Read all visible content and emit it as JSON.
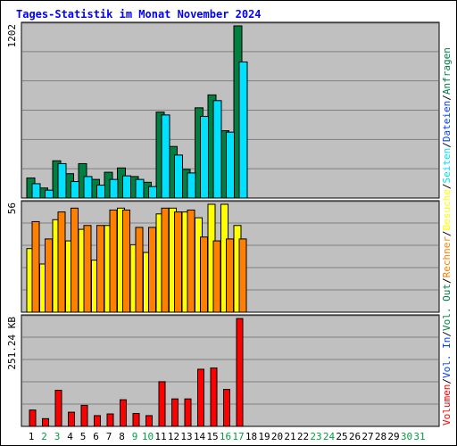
{
  "chart_data": [
    {
      "type": "bar",
      "title": "Tages-Statistik im Monat November 2024",
      "panel": "Anfragen/Dateien/Seiten",
      "categories": [
        "1",
        "2",
        "3",
        "4",
        "5",
        "6",
        "7",
        "8",
        "9",
        "10",
        "11",
        "12",
        "13",
        "14",
        "15",
        "16",
        "17",
        "18",
        "19",
        "20",
        "21",
        "22",
        "23",
        "24",
        "25",
        "26",
        "27",
        "28",
        "29",
        "30",
        "31"
      ],
      "ymax_label": "1202",
      "ylim": [
        0,
        1202
      ],
      "grid": true,
      "series": [
        {
          "name": "Anfragen",
          "color": "#008040",
          "values": [
            140,
            70,
            260,
            170,
            240,
            130,
            180,
            210,
            150,
            110,
            600,
            360,
            200,
            630,
            720,
            470,
            1202,
            null,
            null,
            null,
            null,
            null,
            null,
            null,
            null,
            null,
            null,
            null,
            null,
            null,
            null
          ]
        },
        {
          "name": "Dateien",
          "color": "#00e0ff",
          "values": [
            100,
            55,
            240,
            115,
            150,
            90,
            130,
            155,
            130,
            80,
            580,
            300,
            175,
            570,
            680,
            460,
            950,
            null,
            null,
            null,
            null,
            null,
            null,
            null,
            null,
            null,
            null,
            null,
            null,
            null,
            null
          ]
        }
      ]
    },
    {
      "type": "bar",
      "panel": "Seiten/Besuche/Rechner",
      "categories": [
        "1",
        "2",
        "3",
        "4",
        "5",
        "6",
        "7",
        "8",
        "9",
        "10",
        "11",
        "12",
        "13",
        "14",
        "15",
        "16",
        "17",
        "18",
        "19",
        "20",
        "21",
        "22",
        "23",
        "24",
        "25",
        "26",
        "27",
        "28",
        "29",
        "30",
        "31"
      ],
      "ymax_label": "56",
      "ylim": [
        0,
        56
      ],
      "grid": true,
      "series": [
        {
          "name": "Seiten",
          "color": "#00e0ff",
          "values": [
            0,
            0,
            0,
            0,
            0,
            0,
            0,
            0,
            0,
            0,
            0,
            0,
            0,
            0,
            0,
            0,
            0,
            null,
            null,
            null,
            null,
            null,
            null,
            null,
            null,
            null,
            null,
            null,
            null,
            null,
            null
          ]
        },
        {
          "name": "Besuche",
          "color": "#ffff00",
          "values": [
            33,
            25,
            48,
            37,
            43,
            27,
            45,
            54,
            35,
            31,
            51,
            54,
            52,
            49,
            56,
            56,
            45,
            null,
            null,
            null,
            null,
            null,
            null,
            null,
            null,
            null,
            null,
            null,
            null,
            null,
            null
          ]
        },
        {
          "name": "Rechner",
          "color": "#ff8000",
          "values": [
            47,
            38,
            52,
            54,
            45,
            45,
            53,
            53,
            44,
            44,
            54,
            52,
            53,
            39,
            37,
            38,
            38,
            null,
            null,
            null,
            null,
            null,
            null,
            null,
            null,
            null,
            null,
            null,
            null,
            null,
            null
          ]
        }
      ]
    },
    {
      "type": "bar",
      "panel": "Volumen/Vol. In/Vol. Out",
      "categories": [
        "1",
        "2",
        "3",
        "4",
        "5",
        "6",
        "7",
        "8",
        "9",
        "10",
        "11",
        "12",
        "13",
        "14",
        "15",
        "16",
        "17",
        "18",
        "19",
        "20",
        "21",
        "22",
        "23",
        "24",
        "25",
        "26",
        "27",
        "28",
        "29",
        "30",
        "31"
      ],
      "ymax_label": "251.24 KB",
      "ylim": [
        0,
        251.24
      ],
      "grid": true,
      "series": [
        {
          "name": "Volumen",
          "color": "#ff0000",
          "values": [
            38,
            18,
            84,
            33,
            49,
            25,
            29,
            62,
            30,
            25,
            104,
            64,
            64,
            133,
            136,
            86,
            251,
            null,
            null,
            null,
            null,
            null,
            null,
            null,
            null,
            null,
            null,
            null,
            null,
            null,
            null
          ]
        }
      ]
    }
  ],
  "legend": {
    "top": [
      {
        "text": "Anfragen",
        "color": "#008040"
      },
      {
        "text": "Dateien",
        "color": "#0040ff"
      },
      {
        "text": "Seiten",
        "color": "#00e0ff"
      },
      {
        "text": "Besuche",
        "color": "#ffff00"
      }
    ],
    "middle": [
      {
        "text": "Rechner",
        "color": "#ff8000"
      },
      {
        "text": "Vol. Out",
        "color": "#008040"
      }
    ],
    "bottom": [
      {
        "text": "Vol. In",
        "color": "#0040ff"
      },
      {
        "text": "Volumen",
        "color": "#ff0000"
      }
    ],
    "separator": "/"
  },
  "weekend_days": [
    2,
    3,
    9,
    10,
    16,
    17,
    23,
    24,
    30,
    31
  ],
  "colors": {
    "panel_bg": "#c0c0c0",
    "title": "#0000ff",
    "weekday_label": "#000000",
    "weekend_label": "#00a040"
  }
}
